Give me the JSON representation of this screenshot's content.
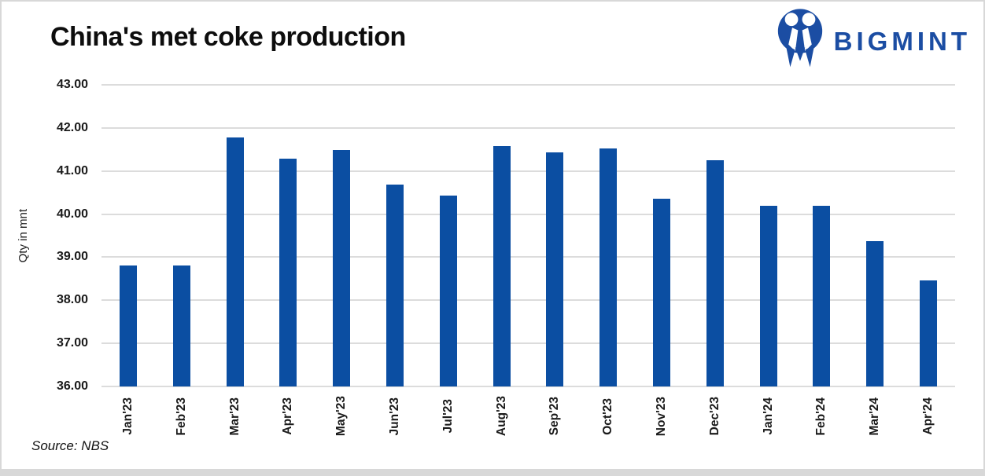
{
  "header": {
    "title": "China's met coke production"
  },
  "logo": {
    "brand": "BIGMINT",
    "icon": "bigmint-two-people-m-icon",
    "color": "#1b4da3"
  },
  "source": {
    "label": "Source: NBS"
  },
  "colors": {
    "bar": "#0b4ea2",
    "gridline": "#dcdcdc",
    "axis_text": "#1a1a1a",
    "frame_border": "#d8d8d8"
  },
  "chart_data": {
    "type": "bar",
    "title": "China's met coke production",
    "xlabel": "",
    "ylabel": "Qty in mnt",
    "ylim": [
      36,
      43
    ],
    "ytick_step": 1,
    "ytick_decimals": 2,
    "grid": true,
    "legend": false,
    "categories": [
      "Jan'23",
      "Feb'23",
      "Mar'23",
      "Apr'23",
      "May'23",
      "Jun'23",
      "Jul'23",
      "Aug'23",
      "Sep'23",
      "Oct'23",
      "Nov'23",
      "Dec'23",
      "Jan'24",
      "Feb'24",
      "Mar'24",
      "Apr'24"
    ],
    "values": [
      38.8,
      38.8,
      41.78,
      41.28,
      41.48,
      40.68,
      40.43,
      41.57,
      41.43,
      41.52,
      40.36,
      41.26,
      40.2,
      40.2,
      39.37,
      38.47
    ]
  }
}
